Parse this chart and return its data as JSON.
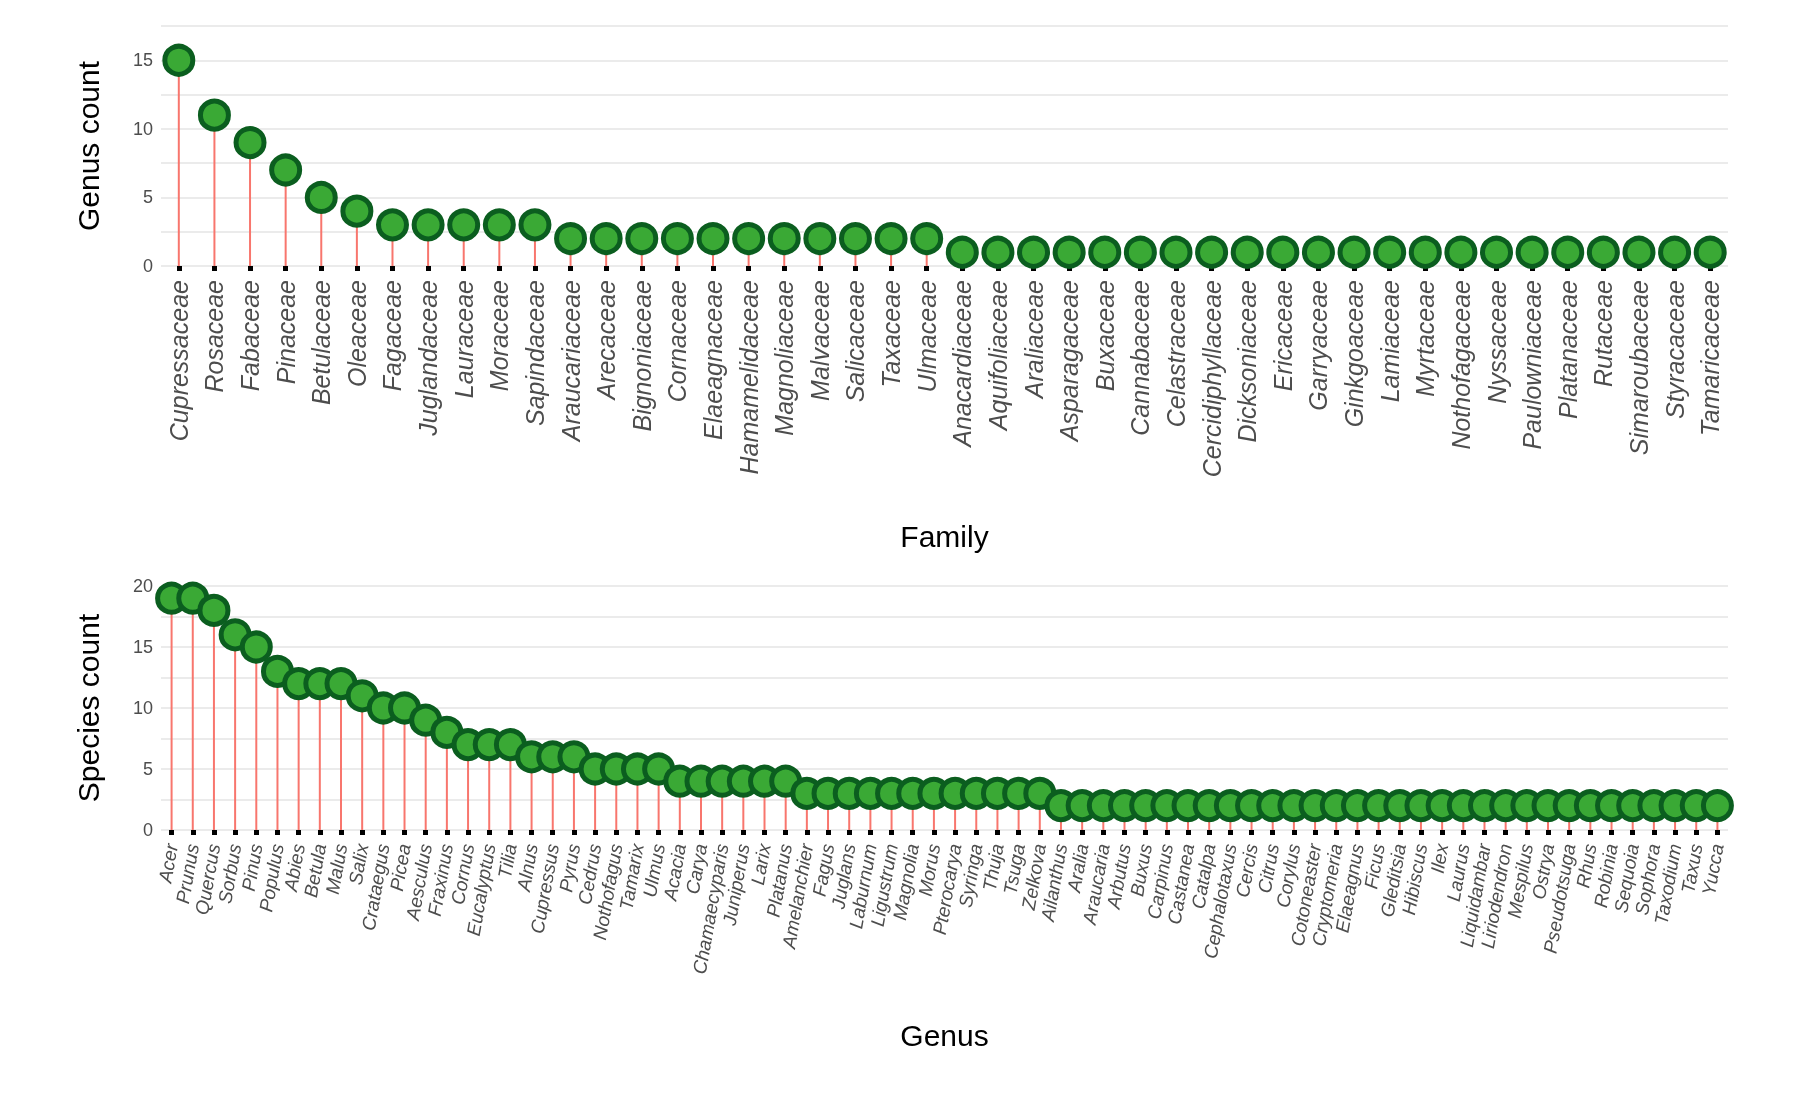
{
  "chart_data": [
    {
      "type": "lollipop",
      "xlabel": "Family",
      "ylabel": "Genus count",
      "ylim": [
        0,
        17.5
      ],
      "yticks": [
        0,
        5,
        10,
        15
      ],
      "grid": "y",
      "marker": "circle",
      "categories": [
        "Cupressaceae",
        "Rosaceae",
        "Fabaceae",
        "Pinaceae",
        "Betulaceae",
        "Oleaceae",
        "Fagaceae",
        "Juglandaceae",
        "Lauraceae",
        "Moraceae",
        "Sapindaceae",
        "Araucariaceae",
        "Arecaceae",
        "Bignoniaceae",
        "Cornaceae",
        "Elaeagnaceae",
        "Hamamelidaceae",
        "Magnoliaceae",
        "Malvaceae",
        "Salicaceae",
        "Taxaceae",
        "Ulmaceae",
        "Anacardiaceae",
        "Aquifoliaceae",
        "Araliaceae",
        "Asparagaceae",
        "Buxaceae",
        "Cannabaceae",
        "Celastraceae",
        "Cercidiphyllaceae",
        "Dicksoniaceae",
        "Ericaceae",
        "Garryaceae",
        "Ginkgoaceae",
        "Lamiaceae",
        "Myrtaceae",
        "Nothofagaceae",
        "Nyssaceae",
        "Paulowniaceae",
        "Platanaceae",
        "Rutaceae",
        "Simaroubaceae",
        "Styracaceae",
        "Tamaricaceae"
      ],
      "series": [
        {
          "color": "#3aa935",
          "values": [
            15,
            11,
            9,
            7,
            5,
            4,
            3,
            3,
            3,
            3,
            3,
            2,
            2,
            2,
            2,
            2,
            2,
            2,
            2,
            2,
            2,
            2,
            1,
            1,
            1,
            1,
            1,
            1,
            1,
            1,
            1,
            1,
            1,
            1,
            1,
            1,
            1,
            1,
            1,
            1,
            1,
            1,
            1,
            1
          ]
        }
      ]
    },
    {
      "type": "lollipop",
      "xlabel": "Genus",
      "ylabel": "Species count",
      "ylim": [
        0,
        20
      ],
      "yticks": [
        0,
        5,
        10,
        15,
        20
      ],
      "grid": "y",
      "marker": "circle",
      "categories": [
        "Acer",
        "Prunus",
        "Quercus",
        "Sorbus",
        "Pinus",
        "Populus",
        "Abies",
        "Betula",
        "Malus",
        "Salix",
        "Crataegus",
        "Picea",
        "Aesculus",
        "Fraxinus",
        "Cornus",
        "Eucalyptus",
        "Tilia",
        "Alnus",
        "Cupressus",
        "Pyrus",
        "Cedrus",
        "Nothofagus",
        "Tamarix",
        "Ulmus",
        "Acacia",
        "Carya",
        "Chamaecyparis",
        "Juniperus",
        "Larix",
        "Platanus",
        "Amelanchier",
        "Fagus",
        "Juglans",
        "Laburnum",
        "Ligustrum",
        "Magnolia",
        "Morus",
        "Pterocarya",
        "Syringa",
        "Thuja",
        "Tsuga",
        "Zelkova",
        "Ailanthus",
        "Aralia",
        "Araucaria",
        "Arbutus",
        "Buxus",
        "Carpinus",
        "Castanea",
        "Catalpa",
        "Cephalotaxus",
        "Cercis",
        "Citrus",
        "Corylus",
        "Cotoneaster",
        "Cryptomeria",
        "Elaeagnus",
        "Ficus",
        "Gleditsia",
        "Hibiscus",
        "Ilex",
        "Laurus",
        "Liquidambar",
        "Liriodendron",
        "Mespilus",
        "Ostrya",
        "Pseudotsuga",
        "Rhus",
        "Robinia",
        "Sequoia",
        "Sophora",
        "Taxodium",
        "Taxus",
        "Yucca"
      ],
      "series": [
        {
          "color": "#3aa935",
          "values": [
            19,
            19,
            18,
            16,
            15,
            13,
            12,
            12,
            12,
            11,
            10,
            10,
            9,
            8,
            7,
            7,
            7,
            6,
            6,
            6,
            5,
            5,
            5,
            5,
            4,
            4,
            4,
            4,
            4,
            4,
            3,
            3,
            3,
            3,
            3,
            3,
            3,
            3,
            3,
            3,
            3,
            3,
            2,
            2,
            2,
            2,
            2,
            2,
            2,
            2,
            2,
            2,
            2,
            2,
            2,
            2,
            2,
            2,
            2,
            2,
            2,
            2,
            2,
            2,
            2,
            2,
            2,
            2,
            2,
            2,
            2,
            2,
            2,
            2
          ]
        }
      ]
    }
  ]
}
